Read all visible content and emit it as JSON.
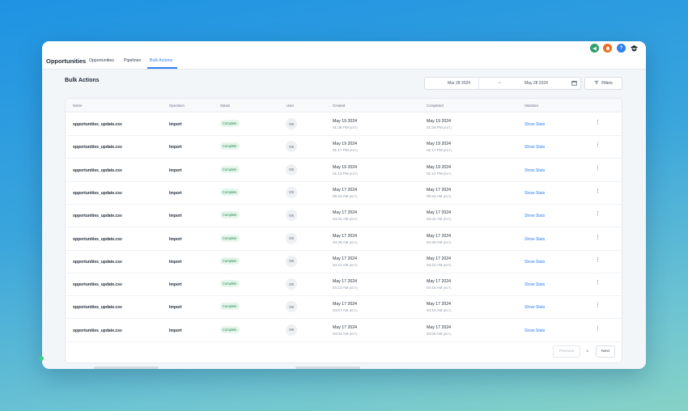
{
  "header": {
    "app_title": "Opportunities",
    "tabs": [
      {
        "label": "Opportunities",
        "active": false
      },
      {
        "label": "Pipelines",
        "active": false
      },
      {
        "label": "Bulk Actions",
        "active": true
      }
    ],
    "icons": [
      {
        "name": "megaphone-icon",
        "color": "#2f9e6e",
        "glyph": "📢"
      },
      {
        "name": "bell-icon",
        "color": "#f26b21",
        "glyph": "🔔"
      },
      {
        "name": "help-icon",
        "color": "#2e7ff0",
        "glyph": "?"
      },
      {
        "name": "avatar-icon",
        "color": "#1f2a37",
        "glyph": "●"
      }
    ]
  },
  "page": {
    "title": "Bulk Actions",
    "date_start": "Mar 28 2024",
    "date_arrow": "→",
    "date_end": "May 28 2024",
    "filters_label": "Filters"
  },
  "table": {
    "columns": [
      "Name",
      "Operation",
      "Status",
      "User",
      "Created",
      "Completed",
      "Statistics"
    ],
    "rows": [
      {
        "name": "opportunities_update.csv",
        "operation": "Import",
        "status": "Complete",
        "user": "VS",
        "created_date": "May 19 2024",
        "created_time": "01:38 PM",
        "completed_date": "May 19 2024",
        "completed_time": "01:39 PM",
        "tz": "(EDT)",
        "stats": "Show Stats"
      },
      {
        "name": "opportunities_update.csv",
        "operation": "Import",
        "status": "Complete",
        "user": "VS",
        "created_date": "May 19 2024",
        "created_time": "01:17 PM",
        "completed_date": "May 19 2024",
        "completed_time": "01:17 PM",
        "tz": "(EDT)",
        "stats": "Show Stats"
      },
      {
        "name": "opportunities_update.csv",
        "operation": "Import",
        "status": "Complete",
        "user": "VS",
        "created_date": "May 19 2024",
        "created_time": "01:13 PM",
        "completed_date": "May 19 2024",
        "completed_time": "01:14 PM",
        "tz": "(EDT)",
        "stats": "Show Stats"
      },
      {
        "name": "opportunities_update.csv",
        "operation": "Import",
        "status": "Complete",
        "user": "VS",
        "created_date": "May 17 2024",
        "created_time": "05:23 AM",
        "completed_date": "May 17 2024",
        "completed_time": "05:24 AM",
        "tz": "(EDT)",
        "stats": "Show Stats"
      },
      {
        "name": "opportunities_update.csv",
        "operation": "Import",
        "status": "Complete",
        "user": "VS",
        "created_date": "May 17 2024",
        "created_time": "04:41 AM",
        "completed_date": "May 17 2024",
        "completed_time": "04:41 AM",
        "tz": "(EDT)",
        "stats": "Show Stats"
      },
      {
        "name": "opportunities_update.csv",
        "operation": "Import",
        "status": "Complete",
        "user": "VS",
        "created_date": "May 17 2024",
        "created_time": "04:39 AM",
        "completed_date": "May 17 2024",
        "completed_time": "04:39 AM",
        "tz": "(EDT)",
        "stats": "Show Stats"
      },
      {
        "name": "opportunities_update.csv",
        "operation": "Import",
        "status": "Complete",
        "user": "VS",
        "created_date": "May 17 2024",
        "created_time": "04:21 AM",
        "completed_date": "May 17 2024",
        "completed_time": "04:24 AM",
        "tz": "(EDT)",
        "stats": "Show Stats"
      },
      {
        "name": "opportunities_update.csv",
        "operation": "Import",
        "status": "Complete",
        "user": "VS",
        "created_date": "May 17 2024",
        "created_time": "04:13 AM",
        "completed_date": "May 17 2024",
        "completed_time": "04:15 AM",
        "tz": "(EDT)",
        "stats": "Show Stats"
      },
      {
        "name": "opportunities_update.csv",
        "operation": "Import",
        "status": "Complete",
        "user": "VS",
        "created_date": "May 17 2024",
        "created_time": "04:07 AM",
        "completed_date": "May 17 2024",
        "completed_time": "04:10 AM",
        "tz": "(EDT)",
        "stats": "Show Stats"
      },
      {
        "name": "opportunities_update.csv",
        "operation": "Import",
        "status": "Complete",
        "user": "VS",
        "created_date": "May 17 2024",
        "created_time": "04:04 AM",
        "completed_date": "May 17 2024",
        "completed_time": "04:05 AM",
        "tz": "(EDT)",
        "stats": "Show Stats"
      }
    ]
  },
  "pagination": {
    "previous": "Previous",
    "page": "1",
    "next": "Next"
  },
  "colors": {
    "accent": "#2e7ff0",
    "success_bg": "#e6f6ec",
    "success_text": "#1f8a4c"
  }
}
